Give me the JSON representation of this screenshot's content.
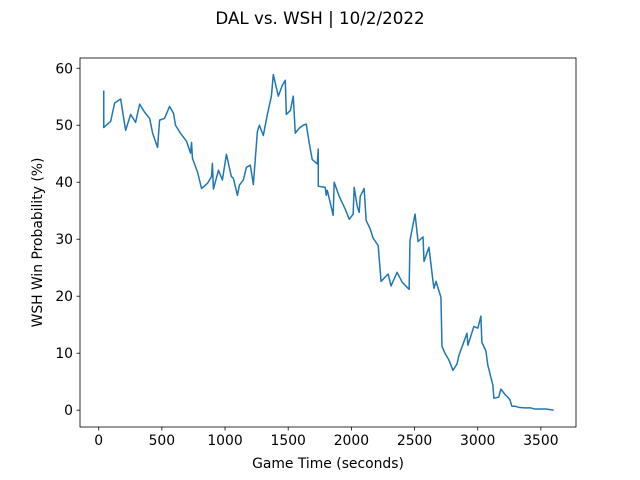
{
  "chart_data": {
    "type": "line",
    "title": "DAL vs. WSH | 10/2/2022",
    "x_label": "Game Time (seconds)",
    "y_label": "WSH Win Probability (%)",
    "x": [
      40,
      40,
      95,
      126,
      174,
      213,
      253,
      292,
      324,
      363,
      403,
      427,
      466,
      482,
      521,
      561,
      592,
      608,
      647,
      695,
      727,
      735,
      742,
      782,
      814,
      861,
      893,
      900,
      908,
      948,
      979,
      1011,
      1050,
      1066,
      1098,
      1114,
      1145,
      1169,
      1200,
      1224,
      1256,
      1272,
      1303,
      1335,
      1367,
      1382,
      1422,
      1453,
      1477,
      1485,
      1517,
      1540,
      1556,
      1588,
      1619,
      1643,
      1667,
      1690,
      1730,
      1738,
      1738,
      1793,
      1801,
      1809,
      1856,
      1864,
      1904,
      1951,
      1983,
      2014,
      2022,
      2046,
      2062,
      2070,
      2101,
      2117,
      2149,
      2172,
      2212,
      2235,
      2291,
      2314,
      2362,
      2401,
      2457,
      2464,
      2504,
      2528,
      2567,
      2575,
      2614,
      2646,
      2654,
      2670,
      2709,
      2717,
      2741,
      2772,
      2804,
      2836,
      2851,
      2915,
      2922,
      2970,
      3001,
      3025,
      3033,
      3065,
      3080,
      3120,
      3128,
      3167,
      3183,
      3215,
      3254,
      3270,
      3294,
      3325,
      3373,
      3420,
      3452,
      3539,
      3602
    ],
    "series": [
      {
        "name": "WSH Win Probability",
        "color": "#1f77b4",
        "values": [
          56.1,
          49.6,
          50.7,
          53.9,
          54.6,
          49.1,
          51.9,
          50.5,
          53.7,
          52.3,
          51.2,
          48.6,
          46.1,
          50.9,
          51.2,
          53.3,
          52.1,
          50,
          48.6,
          47.2,
          45.1,
          47,
          44.2,
          41.8,
          38.9,
          39.8,
          41,
          43.3,
          38.8,
          42.1,
          40.4,
          44.9,
          41,
          40.7,
          37.7,
          39.5,
          40.4,
          42.6,
          43,
          39.6,
          48.9,
          50,
          48.2,
          51.9,
          55.1,
          58.9,
          55.1,
          57,
          57.9,
          51.9,
          52.6,
          55.1,
          48.6,
          49.5,
          50,
          50.2,
          46.8,
          44,
          43.2,
          45.8,
          39.3,
          39.1,
          37.7,
          38.6,
          34.2,
          40,
          37.5,
          35.3,
          33.5,
          34.4,
          39.1,
          35.8,
          34.7,
          37.5,
          38.9,
          33.3,
          31.8,
          30.2,
          28.9,
          22.6,
          23.9,
          21.8,
          24.2,
          22.5,
          21.2,
          29.8,
          34.4,
          29.6,
          30.4,
          26.1,
          28.6,
          22.6,
          21.4,
          22.6,
          19.8,
          11.2,
          10,
          8.8,
          7,
          8.1,
          9.6,
          13.5,
          11.4,
          14.7,
          14.4,
          16.5,
          11.9,
          10.4,
          7.9,
          4.4,
          2.1,
          2.3,
          3.7,
          2.8,
          1.9,
          0.7,
          0.7,
          0.5,
          0.4,
          0.4,
          0.2,
          0.2,
          0
        ]
      }
    ],
    "xlim": [
      -148,
      3778
    ],
    "ylim": [
      -2.95,
      61.8
    ],
    "xticks": [
      0,
      500,
      1000,
      1500,
      2000,
      2500,
      3000,
      3500
    ],
    "yticks": [
      0,
      10,
      20,
      30,
      40,
      50,
      60
    ],
    "grid": false
  }
}
